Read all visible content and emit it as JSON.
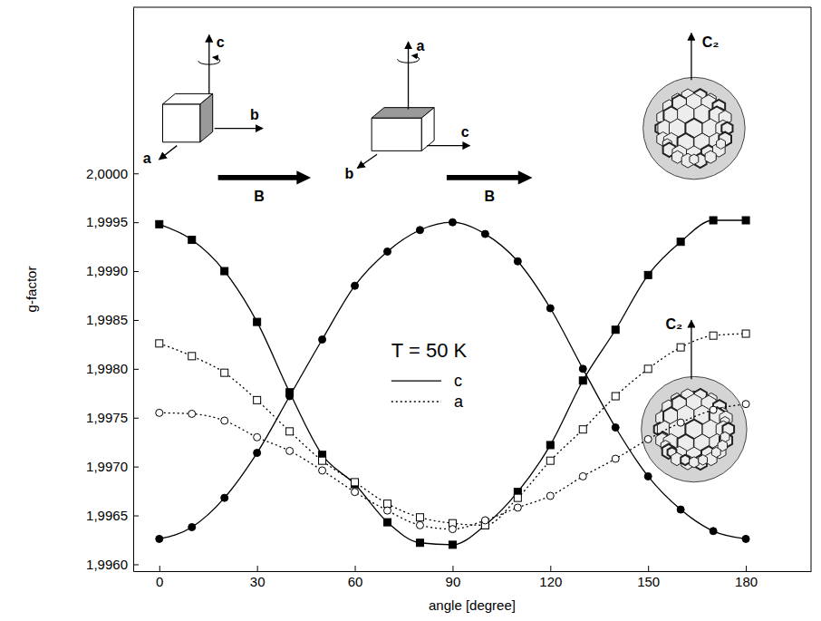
{
  "chart_data": {
    "type": "line",
    "x_label": "angle [degree]",
    "y_label": "g-factor",
    "annotations": [
      "T = 50 K",
      "c",
      "b",
      "a",
      "a",
      "c",
      "b",
      "B",
      "B",
      "C₂",
      "C₂"
    ],
    "x": [
      0,
      10,
      20,
      30,
      40,
      50,
      60,
      70,
      80,
      90,
      100,
      110,
      120,
      130,
      140,
      150,
      160,
      170,
      180
    ],
    "series": [
      {
        "name": "c",
        "color": "#000000",
        "marker": "square",
        "line_style": "solid",
        "values": [
          1.99948,
          1.99932,
          1.999,
          1.99848,
          1.99776,
          1.99712,
          1.99682,
          1.99643,
          1.99622,
          1.9962,
          1.9964,
          1.99674,
          1.99722,
          1.99788,
          1.9984,
          1.99896,
          1.9993,
          1.99952,
          1.99952
        ]
      },
      {
        "name": "c",
        "color": "#000000",
        "marker": "circle",
        "line_style": "solid",
        "values": [
          1.99626,
          1.99638,
          1.99668,
          1.99714,
          1.99772,
          1.9983,
          1.99885,
          1.9992,
          1.99942,
          1.9995,
          1.99938,
          1.9991,
          1.99862,
          1.998,
          1.9974,
          1.9969,
          1.99656,
          1.99634,
          1.99626
        ]
      },
      {
        "name": "a",
        "color": "#000000",
        "marker": "open-square",
        "line_style": "dotted",
        "values": [
          1.99826,
          1.99813,
          1.99796,
          1.99768,
          1.99736,
          1.99706,
          1.99684,
          1.99662,
          1.99648,
          1.99642,
          1.9964,
          1.99668,
          1.99706,
          1.99738,
          1.99772,
          1.998,
          1.99822,
          1.99834,
          1.99836
        ]
      },
      {
        "name": "a",
        "color": "#000000",
        "marker": "open-circle",
        "line_style": "dotted",
        "values": [
          1.99755,
          1.99754,
          1.99747,
          1.9973,
          1.99716,
          1.99696,
          1.99674,
          1.99655,
          1.9964,
          1.99636,
          1.99645,
          1.99658,
          1.9967,
          1.9969,
          1.99708,
          1.99728,
          1.99745,
          1.99758,
          1.99764
        ]
      }
    ],
    "xlim": [
      -8,
      200
    ],
    "xticks": [
      0,
      30,
      60,
      90,
      120,
      150,
      180
    ],
    "ylim": [
      1.99593,
      2.0017
    ],
    "yticks": [
      {
        "value": 1.996,
        "label": "1,9960"
      },
      {
        "value": 1.9965,
        "label": "1,9965"
      },
      {
        "value": 1.997,
        "label": "1,9970"
      },
      {
        "value": 1.9975,
        "label": "1,9975"
      },
      {
        "value": 1.998,
        "label": "1,9980"
      },
      {
        "value": 1.9985,
        "label": "1,9985"
      },
      {
        "value": 1.999,
        "label": "1,9990"
      },
      {
        "value": 1.9995,
        "label": "1,9995"
      },
      {
        "value": 2.0,
        "label": "2,0000"
      }
    ],
    "legend": "center",
    "grid": false
  }
}
